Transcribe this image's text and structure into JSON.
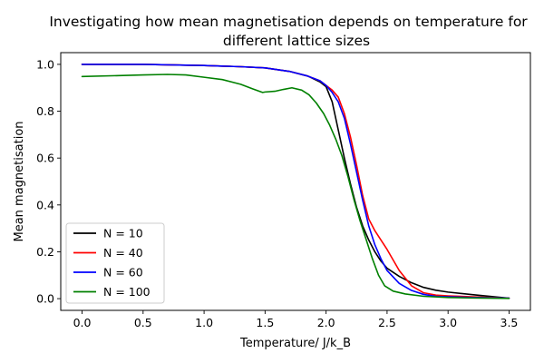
{
  "chart_data": {
    "type": "line",
    "title_lines": [
      "Investigating how mean magnetisation depends on temperature for",
      "different lattice sizes"
    ],
    "xlabel": "Temperature/ J/k_B",
    "ylabel": "Mean magnetisation",
    "xlim": [
      -0.175,
      3.675
    ],
    "ylim": [
      -0.05,
      1.05
    ],
    "x_ticks": [
      0.0,
      0.5,
      1.0,
      1.5,
      2.0,
      2.5,
      3.0,
      3.5
    ],
    "x_tick_labels": [
      "0.0",
      "0.5",
      "1.0",
      "1.5",
      "2.0",
      "2.5",
      "3.0",
      "3.5"
    ],
    "y_ticks": [
      0.0,
      0.2,
      0.4,
      0.6,
      0.8,
      1.0
    ],
    "y_tick_labels": [
      "0.0",
      "0.2",
      "0.4",
      "0.6",
      "0.8",
      "1.0"
    ],
    "grid": false,
    "legend_position": "lower-left",
    "series": [
      {
        "name": "N = 10",
        "color": "#000000",
        "points": [
          [
            0.0,
            1.0
          ],
          [
            0.5,
            1.0
          ],
          [
            1.0,
            0.995
          ],
          [
            1.3,
            0.99
          ],
          [
            1.5,
            0.985
          ],
          [
            1.7,
            0.97
          ],
          [
            1.85,
            0.95
          ],
          [
            1.95,
            0.925
          ],
          [
            2.0,
            0.905
          ],
          [
            2.05,
            0.84
          ],
          [
            2.1,
            0.72
          ],
          [
            2.15,
            0.6
          ],
          [
            2.2,
            0.49
          ],
          [
            2.25,
            0.39
          ],
          [
            2.3,
            0.31
          ],
          [
            2.35,
            0.25
          ],
          [
            2.4,
            0.2
          ],
          [
            2.45,
            0.16
          ],
          [
            2.5,
            0.13
          ],
          [
            2.6,
            0.095
          ],
          [
            2.7,
            0.068
          ],
          [
            2.8,
            0.048
          ],
          [
            2.9,
            0.036
          ],
          [
            3.0,
            0.028
          ],
          [
            3.2,
            0.017
          ],
          [
            3.4,
            0.007
          ],
          [
            3.5,
            0.002
          ]
        ]
      },
      {
        "name": "N = 40",
        "color": "#ff0000",
        "points": [
          [
            0.0,
            1.0
          ],
          [
            0.5,
            1.0
          ],
          [
            1.0,
            0.995
          ],
          [
            1.3,
            0.99
          ],
          [
            1.5,
            0.985
          ],
          [
            1.7,
            0.97
          ],
          [
            1.85,
            0.95
          ],
          [
            1.95,
            0.93
          ],
          [
            2.0,
            0.91
          ],
          [
            2.05,
            0.89
          ],
          [
            2.1,
            0.86
          ],
          [
            2.15,
            0.79
          ],
          [
            2.2,
            0.69
          ],
          [
            2.25,
            0.57
          ],
          [
            2.3,
            0.44
          ],
          [
            2.35,
            0.34
          ],
          [
            2.4,
            0.29
          ],
          [
            2.5,
            0.21
          ],
          [
            2.6,
            0.12
          ],
          [
            2.7,
            0.055
          ],
          [
            2.8,
            0.025
          ],
          [
            2.9,
            0.015
          ],
          [
            3.0,
            0.012
          ],
          [
            3.2,
            0.008
          ],
          [
            3.4,
            0.004
          ],
          [
            3.5,
            0.002
          ]
        ]
      },
      {
        "name": "N = 60",
        "color": "#0000ff",
        "points": [
          [
            0.0,
            1.0
          ],
          [
            0.5,
            1.0
          ],
          [
            1.0,
            0.995
          ],
          [
            1.3,
            0.99
          ],
          [
            1.5,
            0.985
          ],
          [
            1.7,
            0.97
          ],
          [
            1.85,
            0.95
          ],
          [
            1.95,
            0.93
          ],
          [
            2.0,
            0.91
          ],
          [
            2.05,
            0.88
          ],
          [
            2.1,
            0.84
          ],
          [
            2.15,
            0.77
          ],
          [
            2.2,
            0.66
          ],
          [
            2.25,
            0.54
          ],
          [
            2.3,
            0.42
          ],
          [
            2.35,
            0.31
          ],
          [
            2.4,
            0.23
          ],
          [
            2.45,
            0.17
          ],
          [
            2.5,
            0.12
          ],
          [
            2.6,
            0.065
          ],
          [
            2.7,
            0.035
          ],
          [
            2.8,
            0.018
          ],
          [
            2.9,
            0.01
          ],
          [
            3.0,
            0.008
          ],
          [
            3.2,
            0.005
          ],
          [
            3.4,
            0.003
          ],
          [
            3.5,
            0.002
          ]
        ]
      },
      {
        "name": "N = 100",
        "color": "#008000",
        "points": [
          [
            0.0,
            0.948
          ],
          [
            0.3,
            0.952
          ],
          [
            0.5,
            0.955
          ],
          [
            0.7,
            0.957
          ],
          [
            0.85,
            0.955
          ],
          [
            1.0,
            0.945
          ],
          [
            1.15,
            0.935
          ],
          [
            1.3,
            0.915
          ],
          [
            1.4,
            0.895
          ],
          [
            1.48,
            0.88
          ],
          [
            1.5,
            0.882
          ],
          [
            1.58,
            0.885
          ],
          [
            1.65,
            0.893
          ],
          [
            1.72,
            0.9
          ],
          [
            1.8,
            0.89
          ],
          [
            1.86,
            0.87
          ],
          [
            1.92,
            0.835
          ],
          [
            1.98,
            0.79
          ],
          [
            2.03,
            0.74
          ],
          [
            2.08,
            0.68
          ],
          [
            2.13,
            0.61
          ],
          [
            2.18,
            0.52
          ],
          [
            2.23,
            0.42
          ],
          [
            2.28,
            0.33
          ],
          [
            2.33,
            0.25
          ],
          [
            2.38,
            0.17
          ],
          [
            2.43,
            0.1
          ],
          [
            2.48,
            0.055
          ],
          [
            2.55,
            0.032
          ],
          [
            2.65,
            0.02
          ],
          [
            2.8,
            0.01
          ],
          [
            3.0,
            0.005
          ],
          [
            3.2,
            0.003
          ],
          [
            3.5,
            0.001
          ]
        ]
      }
    ]
  }
}
